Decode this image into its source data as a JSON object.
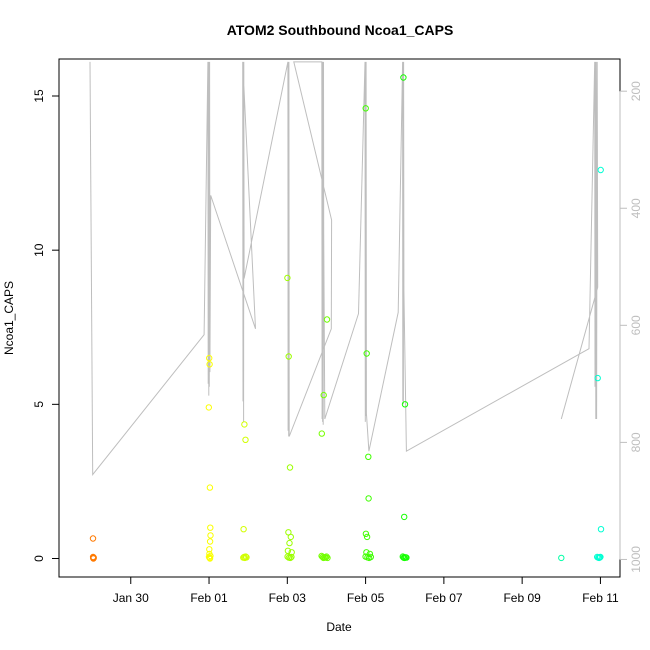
{
  "chart_data": {
    "type": "scatter",
    "title": "ATOM2 Southbound Ncoa1_CAPS",
    "xlabel": "Date",
    "ylabel": "Ncoa1_CAPS",
    "x_range": [
      "2019-01-28T04:00",
      "2019-02-11T12:00"
    ],
    "ylim": [
      -0.6,
      16.2
    ],
    "y2lim": [
      1030,
      145
    ],
    "x_ticks": [
      {
        "date": "2019-01-30",
        "label": "Jan 30"
      },
      {
        "date": "2019-02-01",
        "label": "Feb 01"
      },
      {
        "date": "2019-02-03",
        "label": "Feb 03"
      },
      {
        "date": "2019-02-05",
        "label": "Feb 05"
      },
      {
        "date": "2019-02-07",
        "label": "Feb 07"
      },
      {
        "date": "2019-02-09",
        "label": "Feb 09"
      },
      {
        "date": "2019-02-11",
        "label": "Feb 11"
      }
    ],
    "y_ticks": [
      0,
      5,
      10,
      15
    ],
    "y2_ticks": [
      200,
      400,
      600,
      800,
      1000
    ],
    "grid": false,
    "point_color_scale": "rainbow by date (orange to cyan)",
    "line_color": "#bebebe",
    "series": [
      {
        "role": "points",
        "points": [
          [
            "2019-01-29T00:50",
            0.65
          ],
          [
            "2019-01-29T00:55",
            0.05
          ],
          [
            "2019-01-29T01:00",
            0.02
          ],
          [
            "2019-01-29T01:05",
            0.0
          ],
          [
            "2019-01-29T01:10",
            0.01
          ],
          [
            "2019-01-29T01:15",
            0.03
          ],
          [
            "2019-01-31T23:50",
            4.9
          ],
          [
            "2019-02-01T00:05",
            6.5
          ],
          [
            "2019-02-01T00:20",
            6.3
          ],
          [
            "2019-02-01T00:30",
            2.3
          ],
          [
            "2019-02-01T00:45",
            1.0
          ],
          [
            "2019-02-01T00:55",
            0.75
          ],
          [
            "2019-02-01T00:40",
            0.55
          ],
          [
            "2019-02-01T00:10",
            0.3
          ],
          [
            "2019-02-01T00:15",
            0.15
          ],
          [
            "2019-02-01T00:00",
            0.05
          ],
          [
            "2019-02-01T00:25",
            0.02
          ],
          [
            "2019-02-01T00:35",
            0.0
          ],
          [
            "2019-02-01T00:50",
            0.08
          ],
          [
            "2019-02-01T21:10",
            0.95
          ],
          [
            "2019-02-01T21:40",
            4.35
          ],
          [
            "2019-02-01T22:20",
            3.85
          ],
          [
            "2019-02-01T21:00",
            0.03
          ],
          [
            "2019-02-01T21:30",
            0.05
          ],
          [
            "2019-02-01T22:00",
            0.02
          ],
          [
            "2019-02-01T22:30",
            0.06
          ],
          [
            "2019-02-01T23:00",
            0.04
          ],
          [
            "2019-02-03T00:05",
            9.1
          ],
          [
            "2019-02-03T00:50",
            6.55
          ],
          [
            "2019-02-03T01:40",
            2.95
          ],
          [
            "2019-02-03T00:40",
            0.85
          ],
          [
            "2019-02-03T02:10",
            0.7
          ],
          [
            "2019-02-03T01:20",
            0.5
          ],
          [
            "2019-02-03T00:20",
            0.25
          ],
          [
            "2019-02-03T02:40",
            0.2
          ],
          [
            "2019-02-03T00:10",
            0.06
          ],
          [
            "2019-02-03T01:00",
            0.03
          ],
          [
            "2019-02-03T01:50",
            0.02
          ],
          [
            "2019-02-03T02:30",
            0.05
          ],
          [
            "2019-02-03T21:10",
            4.05
          ],
          [
            "2019-02-03T22:20",
            5.3
          ],
          [
            "2019-02-04T00:20",
            7.75
          ],
          [
            "2019-02-03T21:00",
            0.08
          ],
          [
            "2019-02-03T21:40",
            0.05
          ],
          [
            "2019-02-03T22:10",
            0.02
          ],
          [
            "2019-02-03T22:50",
            0.04
          ],
          [
            "2019-02-03T23:30",
            0.03
          ],
          [
            "2019-02-04T00:00",
            0.06
          ],
          [
            "2019-02-04T00:40",
            0.02
          ],
          [
            "2019-02-05T00:05",
            14.6
          ],
          [
            "2019-02-05T00:40",
            6.65
          ],
          [
            "2019-02-05T01:40",
            3.3
          ],
          [
            "2019-02-05T01:50",
            1.95
          ],
          [
            "2019-02-05T00:10",
            0.8
          ],
          [
            "2019-02-05T00:55",
            0.7
          ],
          [
            "2019-02-05T00:30",
            0.2
          ],
          [
            "2019-02-05T02:40",
            0.15
          ],
          [
            "2019-02-05T00:00",
            0.06
          ],
          [
            "2019-02-05T01:10",
            0.04
          ],
          [
            "2019-02-05T02:10",
            0.02
          ],
          [
            "2019-02-05T03:10",
            0.05
          ],
          [
            "2019-02-05T23:10",
            15.6
          ],
          [
            "2019-02-06T00:10",
            5.0
          ],
          [
            "2019-02-05T23:40",
            1.35
          ],
          [
            "2019-02-05T22:50",
            0.06
          ],
          [
            "2019-02-05T23:20",
            0.03
          ],
          [
            "2019-02-05T23:50",
            0.02
          ],
          [
            "2019-02-06T00:30",
            0.04
          ],
          [
            "2019-02-06T01:00",
            0.03
          ],
          [
            "2019-02-10T00:00",
            0.02
          ],
          [
            "2019-02-10T22:20",
            5.85
          ],
          [
            "2019-02-11T00:10",
            12.6
          ],
          [
            "2019-02-11T00:20",
            0.95
          ],
          [
            "2019-02-10T22:00",
            0.05
          ],
          [
            "2019-02-10T22:40",
            0.03
          ],
          [
            "2019-02-10T23:10",
            0.02
          ],
          [
            "2019-02-10T23:40",
            0.04
          ],
          [
            "2019-02-11T00:00",
            0.05
          ]
        ]
      },
      {
        "role": "depth-line",
        "points": [
          [
            "2019-01-28T23:00",
            150
          ],
          [
            "2019-01-29T00:40",
            855
          ],
          [
            "2019-01-31T21:00",
            616
          ],
          [
            "2019-01-31T23:20",
            150
          ],
          [
            "2019-01-31T23:30",
            700
          ],
          [
            "2019-01-31T23:40",
            150
          ],
          [
            "2019-01-31T23:50",
            720
          ],
          [
            "2019-02-01T00:00",
            150
          ],
          [
            "2019-02-01T00:10",
            705
          ],
          [
            "2019-02-01T00:20",
            150
          ],
          [
            "2019-02-01T00:30",
            680
          ],
          [
            "2019-02-01T01:00",
            378
          ],
          [
            "2019-02-02T04:30",
            606
          ],
          [
            "2019-02-01T20:40",
            150
          ],
          [
            "2019-02-01T20:50",
            730
          ],
          [
            "2019-02-01T21:00",
            150
          ],
          [
            "2019-02-01T21:10",
            765
          ],
          [
            "2019-02-01T21:20",
            150
          ],
          [
            "2019-02-01T21:30",
            520
          ],
          [
            "2019-02-03T00:20",
            150
          ],
          [
            "2019-02-03T00:30",
            780
          ],
          [
            "2019-02-03T00:40",
            150
          ],
          [
            "2019-02-03T00:50",
            790
          ],
          [
            "2019-02-03T01:00",
            150
          ],
          [
            "2019-02-03T01:10",
            790
          ],
          [
            "2019-02-04T03:00",
            606
          ],
          [
            "2019-02-04T03:10",
            420
          ],
          [
            "2019-02-03T04:00",
            150
          ],
          [
            "2019-02-03T21:10",
            150
          ],
          [
            "2019-02-03T21:20",
            760
          ],
          [
            "2019-02-03T21:30",
            150
          ],
          [
            "2019-02-03T21:40",
            765
          ],
          [
            "2019-02-03T21:50",
            150
          ],
          [
            "2019-02-03T22:00",
            770
          ],
          [
            "2019-02-03T22:10",
            150
          ],
          [
            "2019-02-03T22:20",
            440
          ],
          [
            "2019-02-03T23:00",
            760
          ],
          [
            "2019-02-04T19:40",
            580
          ],
          [
            "2019-02-04T23:40",
            150
          ],
          [
            "2019-02-04T23:50",
            765
          ],
          [
            "2019-02-05T00:00",
            150
          ],
          [
            "2019-02-05T00:10",
            755
          ],
          [
            "2019-02-05T00:20",
            150
          ],
          [
            "2019-02-05T00:30",
            750
          ],
          [
            "2019-02-05T02:00",
            815
          ],
          [
            "2019-02-05T20:00",
            578
          ],
          [
            "2019-02-05T22:40",
            150
          ],
          [
            "2019-02-05T22:50",
            730
          ],
          [
            "2019-02-05T23:00",
            150
          ],
          [
            "2019-02-05T23:10",
            735
          ],
          [
            "2019-02-05T23:20",
            150
          ],
          [
            "2019-02-05T23:30",
            540
          ],
          [
            "2019-02-06T01:00",
            815
          ],
          [
            "2019-02-10T17:00",
            640
          ],
          [
            "2019-02-10T20:30",
            150
          ],
          [
            "2019-02-10T20:40",
            705
          ],
          [
            "2019-02-10T20:50",
            150
          ],
          [
            "2019-02-10T21:10",
            760
          ],
          [
            "2019-02-10T21:20",
            150
          ],
          [
            "2019-02-10T21:40",
            760
          ],
          [
            "2019-02-10T22:00",
            150
          ],
          [
            "2019-02-10T22:20",
            535
          ],
          [
            "2019-02-10T00:00",
            760
          ]
        ]
      }
    ]
  }
}
